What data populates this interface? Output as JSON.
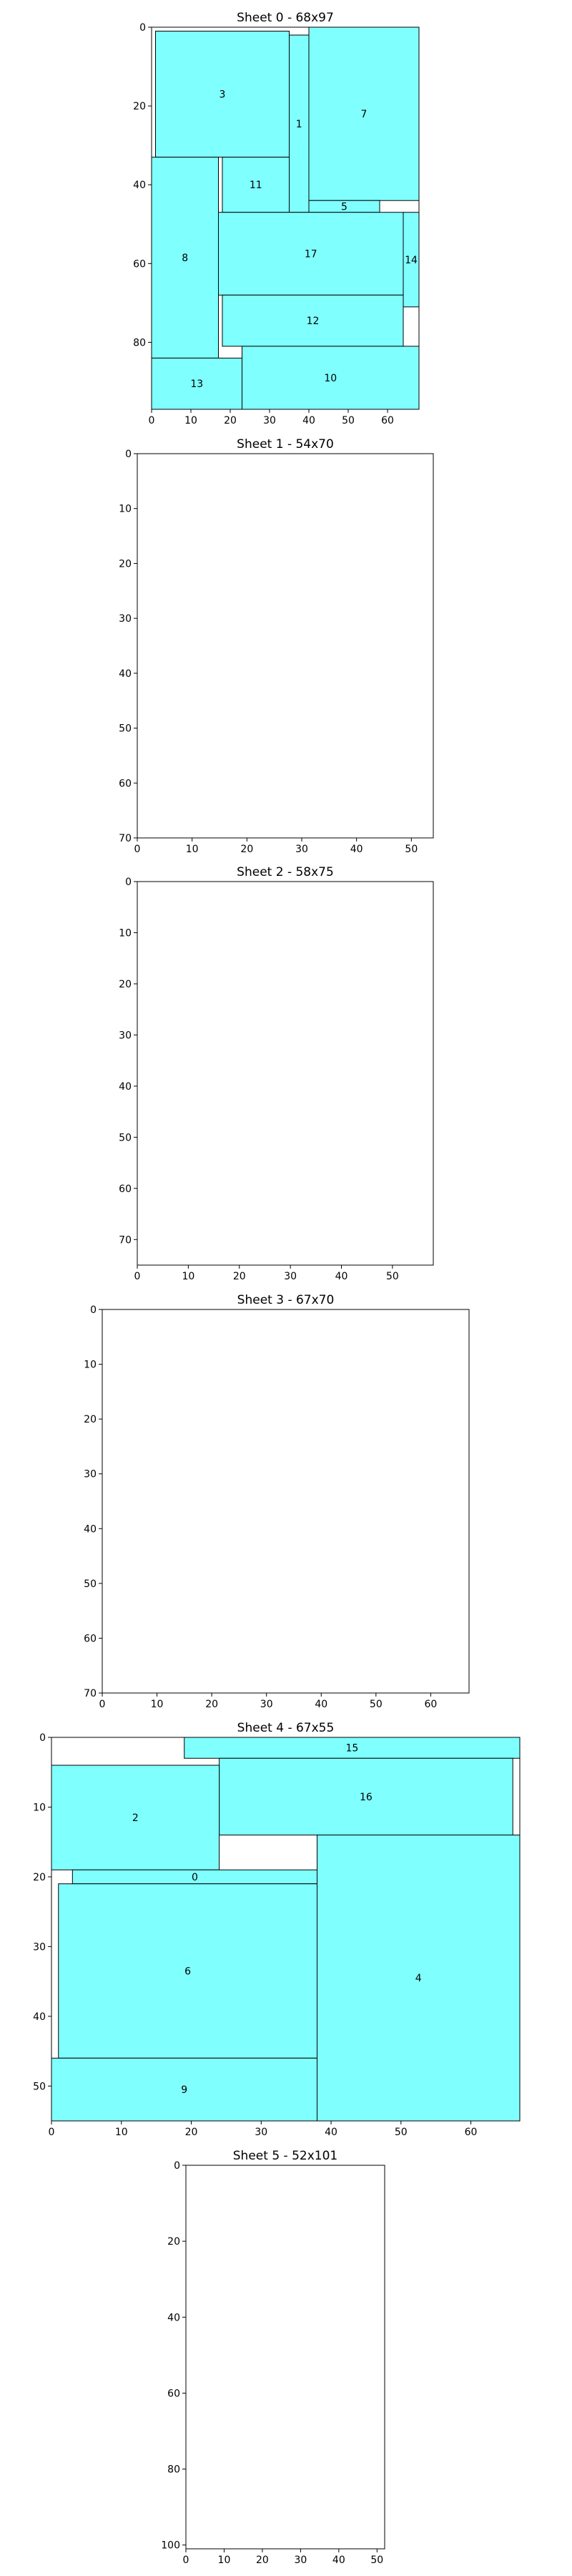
{
  "chart_data": [
    {
      "type": "bar",
      "title": "Sheet 0 - 68x97",
      "xlim": [
        0,
        68
      ],
      "ylim": [
        97,
        0
      ],
      "xticks": [
        0,
        10,
        20,
        30,
        40,
        50,
        60
      ],
      "yticks": [
        0,
        20,
        40,
        60,
        80
      ],
      "rects": [
        {
          "id": "3",
          "x": 1,
          "y": 1,
          "w": 34,
          "h": 32
        },
        {
          "id": "1",
          "x": 35,
          "y": 2,
          "w": 5,
          "h": 45
        },
        {
          "id": "7",
          "x": 40,
          "y": 0,
          "w": 28,
          "h": 44
        },
        {
          "id": "11",
          "x": 18,
          "y": 33,
          "w": 17,
          "h": 14
        },
        {
          "id": "5",
          "x": 40,
          "y": 44,
          "w": 18,
          "h": 3
        },
        {
          "id": "8",
          "x": 0,
          "y": 33,
          "w": 17,
          "h": 51
        },
        {
          "id": "17",
          "x": 17,
          "y": 47,
          "w": 47,
          "h": 21
        },
        {
          "id": "14",
          "x": 64,
          "y": 47,
          "w": 4,
          "h": 24
        },
        {
          "id": "12",
          "x": 18,
          "y": 68,
          "w": 46,
          "h": 13
        },
        {
          "id": "13",
          "x": 0,
          "y": 84,
          "w": 23,
          "h": 13
        },
        {
          "id": "10",
          "x": 23,
          "y": 81,
          "w": 45,
          "h": 16
        }
      ]
    },
    {
      "type": "bar",
      "title": "Sheet 1 - 54x70",
      "xlim": [
        0,
        54
      ],
      "ylim": [
        70,
        0
      ],
      "xticks": [
        0,
        10,
        20,
        30,
        40,
        50
      ],
      "yticks": [
        0,
        10,
        20,
        30,
        40,
        50,
        60,
        70
      ],
      "rects": []
    },
    {
      "type": "bar",
      "title": "Sheet 2 - 58x75",
      "xlim": [
        0,
        58
      ],
      "ylim": [
        75,
        0
      ],
      "xticks": [
        0,
        10,
        20,
        30,
        40,
        50
      ],
      "yticks": [
        0,
        10,
        20,
        30,
        40,
        50,
        60,
        70
      ],
      "rects": []
    },
    {
      "type": "bar",
      "title": "Sheet 3 - 67x70",
      "xlim": [
        0,
        67
      ],
      "ylim": [
        70,
        0
      ],
      "xticks": [
        0,
        10,
        20,
        30,
        40,
        50,
        60
      ],
      "yticks": [
        0,
        10,
        20,
        30,
        40,
        50,
        60,
        70
      ],
      "rects": []
    },
    {
      "type": "bar",
      "title": "Sheet 4 - 67x55",
      "xlim": [
        0,
        67
      ],
      "ylim": [
        55,
        0
      ],
      "xticks": [
        0,
        10,
        20,
        30,
        40,
        50,
        60
      ],
      "yticks": [
        0,
        10,
        20,
        30,
        40,
        50
      ],
      "rects": [
        {
          "id": "15",
          "x": 19,
          "y": 0,
          "w": 48,
          "h": 3
        },
        {
          "id": "16",
          "x": 24,
          "y": 3,
          "w": 42,
          "h": 11
        },
        {
          "id": "2",
          "x": 0,
          "y": 4,
          "w": 24,
          "h": 15
        },
        {
          "id": "0",
          "x": 3,
          "y": 19,
          "w": 35,
          "h": 2
        },
        {
          "id": "4",
          "x": 38,
          "y": 14,
          "w": 29,
          "h": 41
        },
        {
          "id": "6",
          "x": 1,
          "y": 21,
          "w": 37,
          "h": 25
        },
        {
          "id": "9",
          "x": 0,
          "y": 46,
          "w": 38,
          "h": 9
        }
      ]
    },
    {
      "type": "bar",
      "title": "Sheet 5 - 52x101",
      "xlim": [
        0,
        52
      ],
      "ylim": [
        101,
        0
      ],
      "xticks": [
        0,
        10,
        20,
        30,
        40,
        50
      ],
      "yticks": [
        0,
        20,
        40,
        60,
        80,
        100
      ],
      "rects": []
    }
  ],
  "colors": {
    "fill": "#80ffff",
    "stroke": "#000000",
    "text": "#000000"
  }
}
